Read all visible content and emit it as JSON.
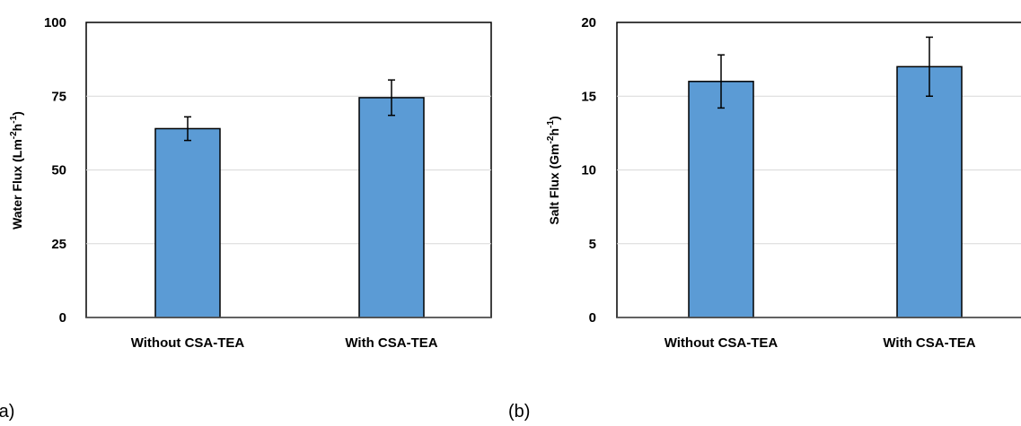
{
  "chart_data": [
    {
      "type": "bar",
      "panel_label": "(a)",
      "categories": [
        "Without CSA-TEA",
        "With CSA-TEA"
      ],
      "values": [
        64,
        74.5
      ],
      "errors": [
        4,
        6
      ],
      "ylabel_main": "Water Flux (Lm",
      "ylabel_sup1": "-2",
      "ylabel_mid": "h",
      "ylabel_sup2": "-1",
      "ylabel_end": ")",
      "ylim": [
        0,
        100
      ],
      "yticks": [
        0,
        25,
        50,
        75,
        100
      ],
      "grid": true,
      "colors": {
        "bar": "#5B9BD5",
        "edge": "#000000",
        "grid": "#D9D9D9"
      }
    },
    {
      "type": "bar",
      "panel_label": "(b)",
      "categories": [
        "Without CSA-TEA",
        "With CSA-TEA"
      ],
      "values": [
        16,
        17
      ],
      "errors": [
        1.8,
        2
      ],
      "ylabel_main": "Salt Flux (Gm",
      "ylabel_sup1": "-2",
      "ylabel_mid": "h",
      "ylabel_sup2": "-1",
      "ylabel_end": ")",
      "ylim": [
        0,
        20
      ],
      "yticks": [
        0,
        5,
        10,
        15,
        20
      ],
      "grid": true,
      "colors": {
        "bar": "#5B9BD5",
        "edge": "#000000",
        "grid": "#D9D9D9"
      }
    }
  ]
}
